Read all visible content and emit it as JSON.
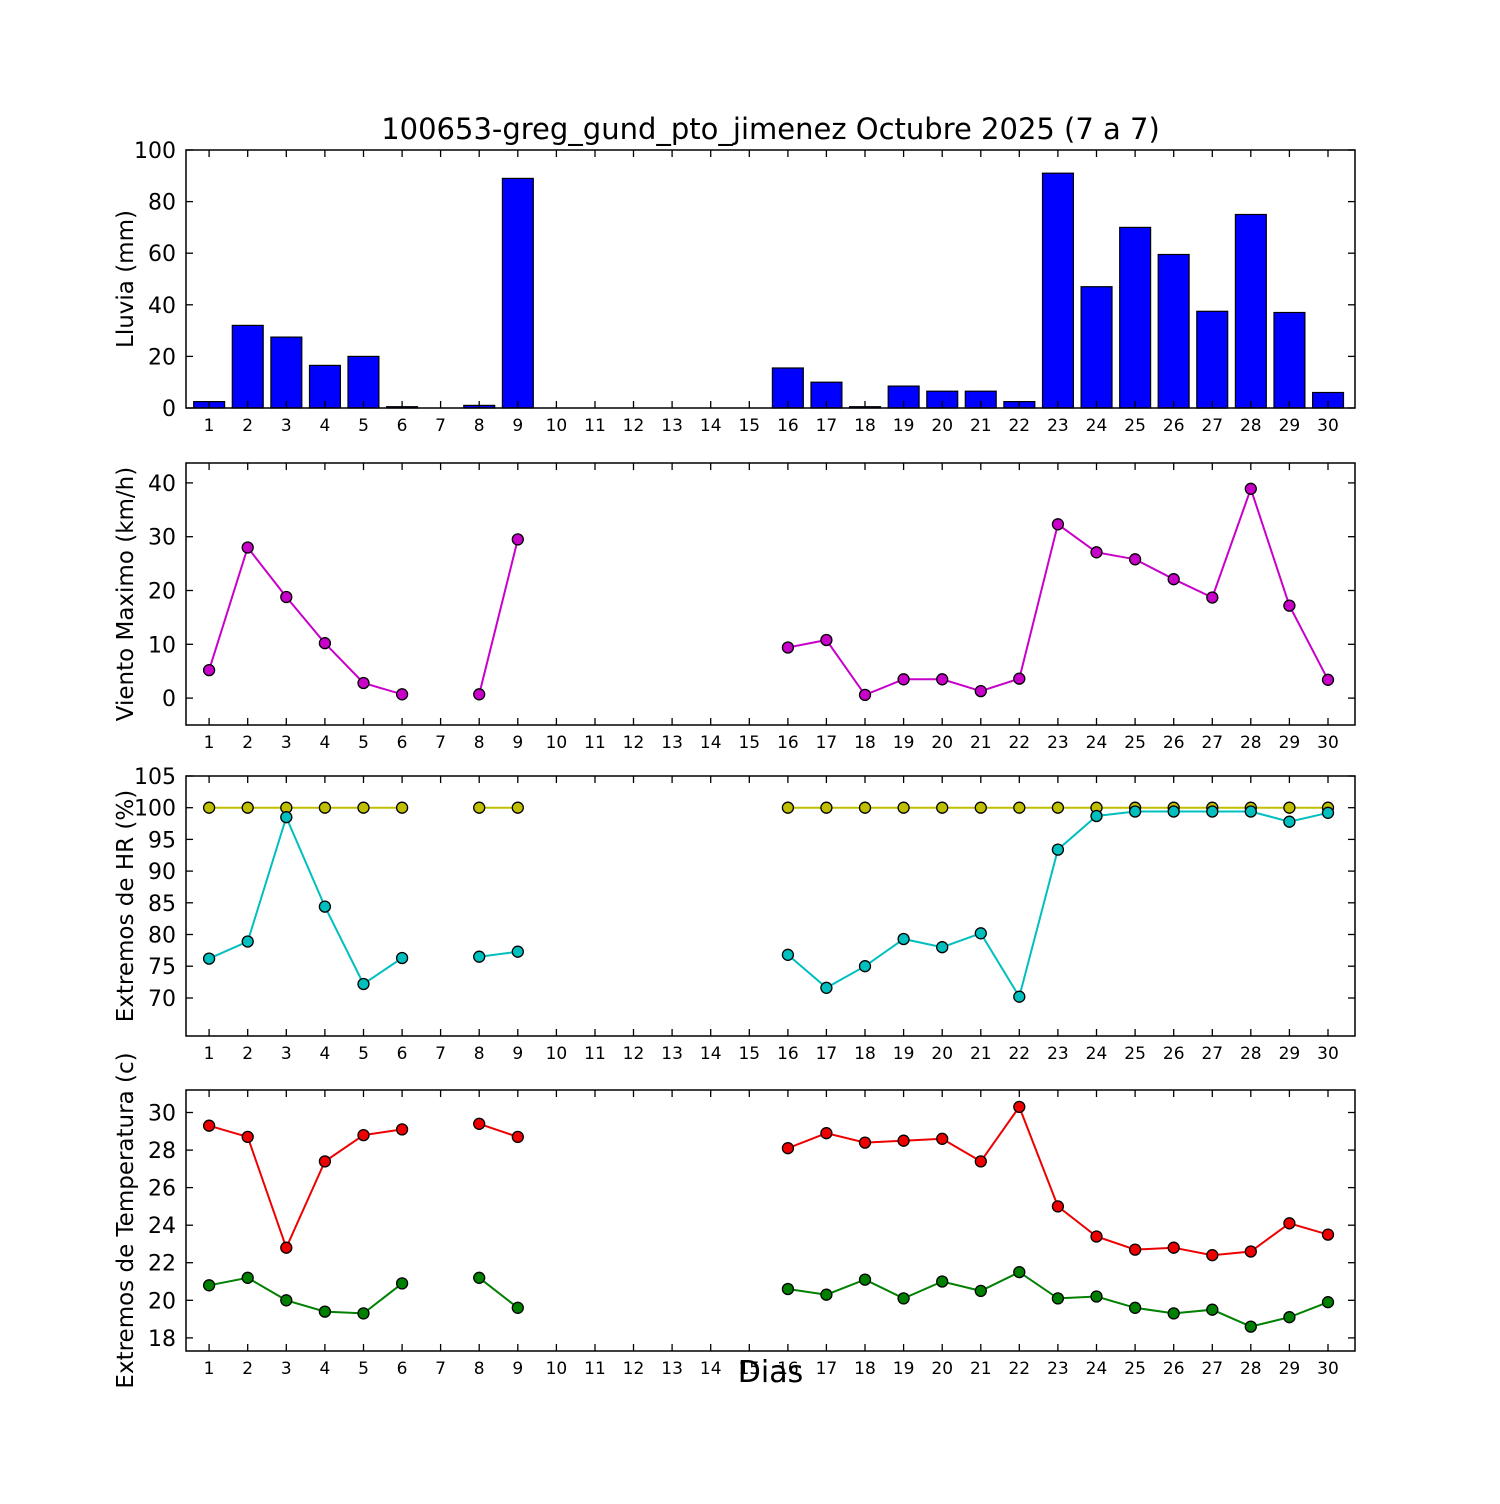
{
  "title": "100653-greg_gund_pto_jimenez Octubre 2025  (7 a 7)",
  "xlabel": "Dias",
  "days": [
    1,
    2,
    3,
    4,
    5,
    6,
    7,
    8,
    9,
    10,
    11,
    12,
    13,
    14,
    15,
    16,
    17,
    18,
    19,
    20,
    21,
    22,
    23,
    24,
    25,
    26,
    27,
    28,
    29,
    30
  ],
  "chart_data": [
    {
      "id": "lluvia",
      "type": "bar",
      "ylabel": "Lluvia (mm)",
      "ylim": [
        0,
        100
      ],
      "yticks": [
        0,
        20,
        40,
        60,
        80,
        100
      ],
      "bar_color": "#0000ff",
      "values": [
        2.5,
        32,
        27.5,
        16.5,
        20,
        0.5,
        null,
        1,
        89,
        null,
        null,
        null,
        null,
        null,
        null,
        15.5,
        10,
        0.5,
        8.5,
        6.5,
        6.5,
        2.5,
        91,
        47,
        70,
        59.5,
        37.5,
        75,
        37,
        6
      ]
    },
    {
      "id": "viento",
      "type": "line",
      "ylabel": "Viento Maximo (km/h)",
      "ylim": [
        -5,
        43.7
      ],
      "yticks": [
        0,
        10,
        20,
        30,
        40
      ],
      "series": [
        {
          "id": "viento_maximo",
          "color": "#c800c8",
          "values": [
            5.2,
            28,
            18.8,
            10.2,
            2.8,
            0.7,
            null,
            0.7,
            29.5,
            null,
            null,
            null,
            null,
            null,
            null,
            9.4,
            10.8,
            0.6,
            3.5,
            3.5,
            1.3,
            3.6,
            32.3,
            27.1,
            25.8,
            22.1,
            18.7,
            38.9,
            17.2,
            3.4
          ]
        }
      ]
    },
    {
      "id": "hr",
      "type": "line",
      "ylabel": "Extremos de HR (%)",
      "ylim": [
        64,
        105
      ],
      "yticks": [
        70,
        75,
        80,
        85,
        90,
        95,
        100,
        105
      ],
      "series": [
        {
          "id": "hr_max",
          "color": "#bfbf00",
          "values": [
            100,
            100,
            100,
            100,
            100,
            100,
            null,
            100,
            100,
            null,
            null,
            null,
            null,
            null,
            null,
            100,
            100,
            100,
            100,
            100,
            100,
            100,
            100,
            100,
            100,
            100,
            100,
            100,
            100,
            100
          ]
        },
        {
          "id": "hr_min",
          "color": "#00bfbf",
          "values": [
            76.2,
            78.9,
            98.5,
            84.4,
            72.2,
            76.3,
            null,
            76.5,
            77.3,
            null,
            null,
            null,
            null,
            null,
            null,
            76.8,
            71.6,
            75.0,
            79.3,
            78.0,
            80.2,
            70.2,
            93.4,
            98.7,
            99.4,
            99.4,
            99.4,
            99.4,
            97.8,
            99.2
          ]
        }
      ]
    },
    {
      "id": "temperatura",
      "type": "line",
      "ylabel": "Extremos de Temperatura (c)",
      "ylim": [
        17.3,
        31.2
      ],
      "yticks": [
        18,
        20,
        22,
        24,
        26,
        28,
        30
      ],
      "series": [
        {
          "id": "temp_max",
          "color": "#ee0000",
          "values": [
            29.3,
            28.7,
            22.8,
            27.4,
            28.8,
            29.1,
            null,
            29.4,
            28.7,
            null,
            null,
            null,
            null,
            null,
            null,
            28.1,
            28.9,
            28.4,
            28.5,
            28.6,
            27.4,
            30.3,
            25.0,
            23.4,
            22.7,
            22.8,
            22.4,
            22.6,
            24.1,
            23.5
          ]
        },
        {
          "id": "temp_min",
          "color": "#008000",
          "values": [
            20.8,
            21.2,
            20.0,
            19.4,
            19.3,
            20.9,
            null,
            21.2,
            19.6,
            null,
            null,
            null,
            null,
            null,
            null,
            20.6,
            20.3,
            21.1,
            20.1,
            21.0,
            20.5,
            21.5,
            20.1,
            20.2,
            19.6,
            19.3,
            19.5,
            18.6,
            19.1,
            19.9
          ]
        }
      ]
    }
  ]
}
